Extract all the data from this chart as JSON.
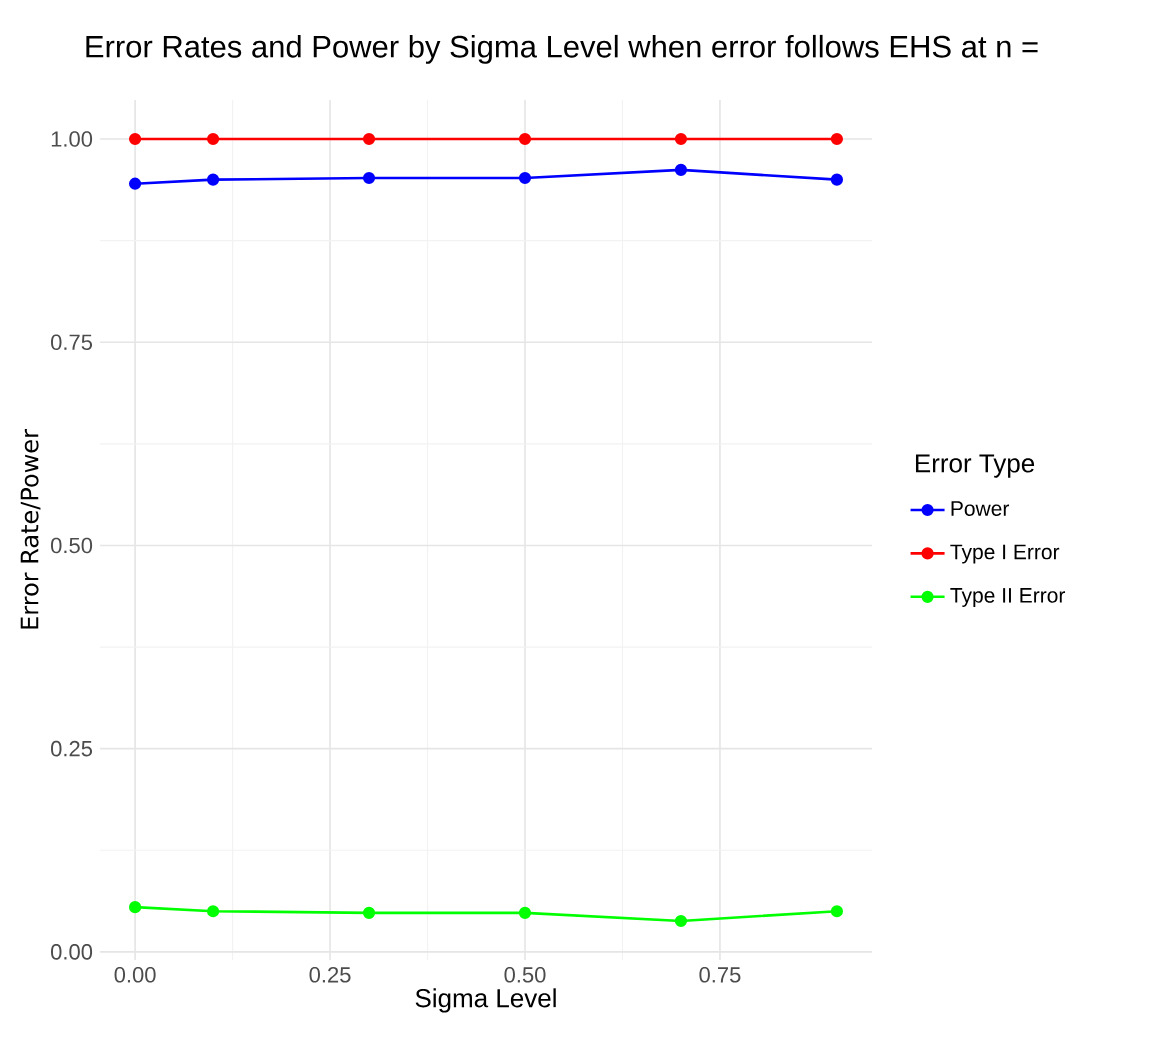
{
  "chart_data": {
    "type": "line",
    "title": "Error Rates and Power by Sigma Level when error follows EHS at n =",
    "xlabel": "Sigma Level",
    "ylabel": "Error Rate/Power",
    "legend_title": "Error Type",
    "x": [
      0,
      0.1,
      0.3,
      0.5,
      0.7,
      0.9
    ],
    "series": [
      {
        "name": "Power",
        "color": "#0000ff",
        "values": [
          0.945,
          0.95,
          0.952,
          0.952,
          0.962,
          0.95
        ]
      },
      {
        "name": "Type I Error",
        "color": "#ff0000",
        "values": [
          1.0,
          1.0,
          1.0,
          1.0,
          1.0,
          1.0
        ]
      },
      {
        "name": "Type II Error",
        "color": "#00ff00",
        "values": [
          0.055,
          0.05,
          0.048,
          0.048,
          0.038,
          0.05
        ]
      }
    ],
    "xlim": [
      -0.045,
      0.945
    ],
    "ylim": [
      -0.01,
      1.048
    ],
    "xticks": [
      {
        "value": 0,
        "label": "0.00"
      },
      {
        "value": 0.25,
        "label": "0.25"
      },
      {
        "value": 0.5,
        "label": "0.50"
      },
      {
        "value": 0.75,
        "label": "0.75"
      }
    ],
    "yticks": [
      {
        "value": 0,
        "label": "0.00"
      },
      {
        "value": 0.25,
        "label": "0.25"
      },
      {
        "value": 0.5,
        "label": "0.50"
      },
      {
        "value": 0.75,
        "label": "0.75"
      },
      {
        "value": 1,
        "label": "1.00"
      }
    ],
    "grid": true,
    "legend": "right",
    "marker": "circle",
    "line_style": "solid"
  }
}
